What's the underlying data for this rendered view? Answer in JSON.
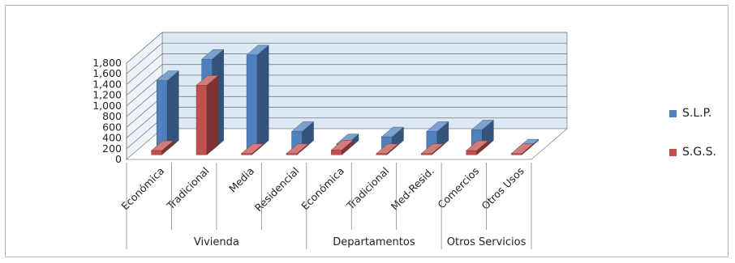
{
  "chart_data": {
    "type": "bar",
    "style": "3d-clustered-column",
    "title": "",
    "xlabel": "",
    "ylabel": "",
    "ylim": [
      0,
      1800
    ],
    "yticks": [
      0,
      200,
      400,
      600,
      800,
      1000,
      1200,
      1400,
      1600,
      1800
    ],
    "ytick_labels": [
      "0",
      "200",
      "400",
      "600",
      "800",
      "1,000",
      "1,200",
      "1,400",
      "1,600",
      "1,800"
    ],
    "grid": true,
    "legend_position": "right",
    "categories": [
      "Económica",
      "Tradicional",
      "Media",
      "Residencial",
      "Económica",
      "Tradicional",
      "Med-Resid.",
      "Comercios",
      "Otros Usos"
    ],
    "groups": [
      {
        "label": "Vivienda",
        "categories": [
          0,
          1,
          2,
          3
        ]
      },
      {
        "label": "Departamentos",
        "categories": [
          4,
          5,
          6
        ]
      },
      {
        "label": "Otros Servicios",
        "categories": [
          7,
          8
        ]
      }
    ],
    "series": [
      {
        "name": "S.L.P.",
        "color": "#4f81bd",
        "values": [
          1300,
          1700,
          1780,
          350,
          120,
          250,
          350,
          380,
          0
        ]
      },
      {
        "name": "S.G.S.",
        "color": "#c0504d",
        "values": [
          80,
          1300,
          0,
          0,
          90,
          0,
          0,
          80,
          0
        ]
      }
    ]
  }
}
